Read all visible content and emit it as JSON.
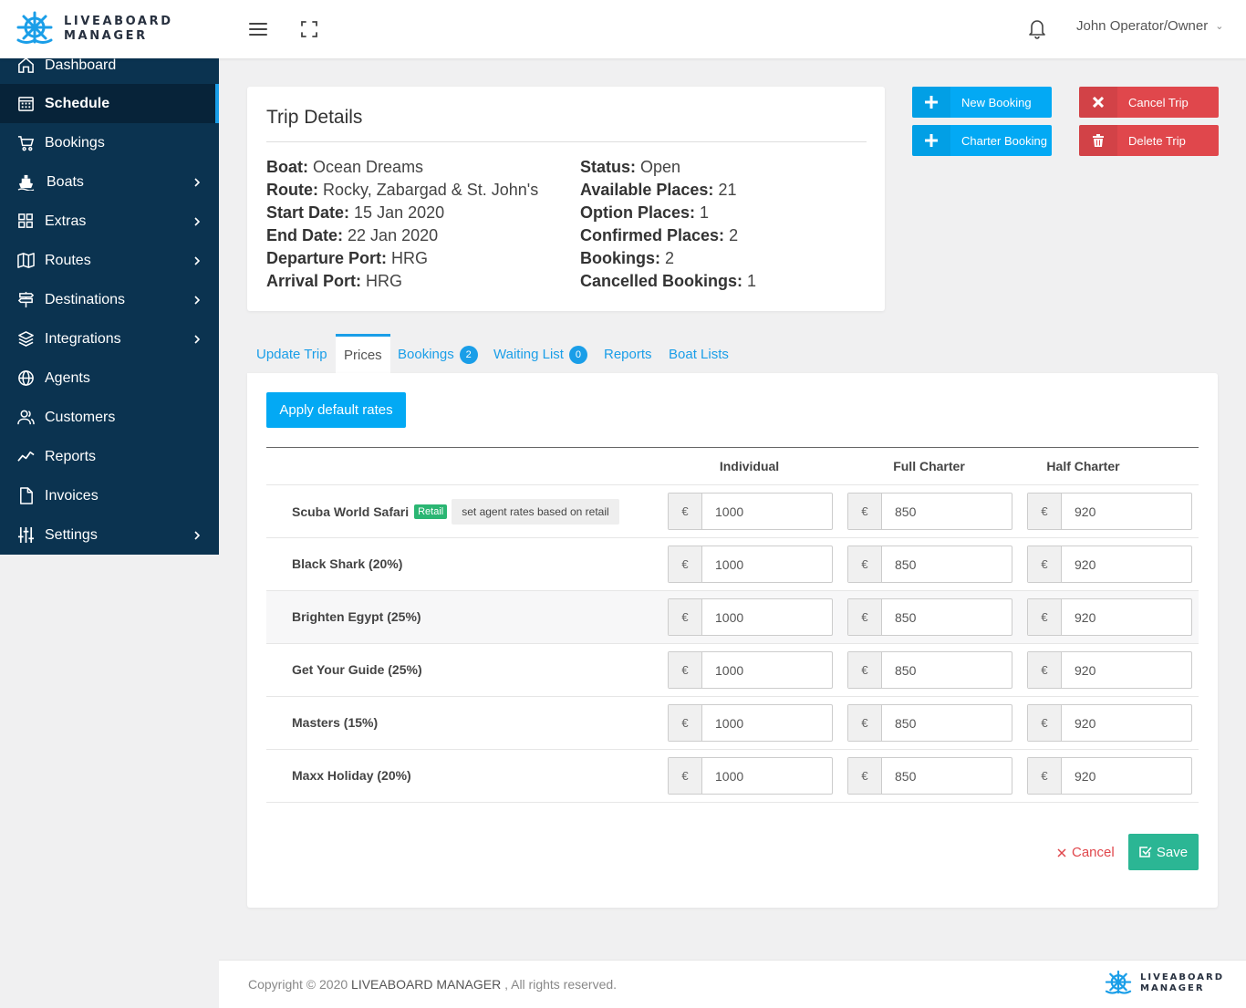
{
  "brand": {
    "line1": "LIVEABOARD",
    "line2": "MANAGER",
    "icon": "ship-wheel-icon",
    "color": "#1a9ee8"
  },
  "header": {
    "user": "John Operator/Owner"
  },
  "sidebar": {
    "items": [
      {
        "label": "Dashboard",
        "icon": "home-icon"
      },
      {
        "label": "Schedule",
        "icon": "calendar-icon",
        "active": true
      },
      {
        "label": "Bookings",
        "icon": "cart-icon"
      },
      {
        "label": "Boats",
        "icon": "ship-icon",
        "has_children": true
      },
      {
        "label": "Extras",
        "icon": "grid-icon",
        "has_children": true
      },
      {
        "label": "Routes",
        "icon": "map-icon",
        "has_children": true
      },
      {
        "label": "Destinations",
        "icon": "signpost-icon",
        "has_children": true
      },
      {
        "label": "Integrations",
        "icon": "layers-icon",
        "has_children": true
      },
      {
        "label": "Agents",
        "icon": "globe-icon"
      },
      {
        "label": "Customers",
        "icon": "users-icon"
      },
      {
        "label": "Reports",
        "icon": "trend-icon"
      },
      {
        "label": "Invoices",
        "icon": "file-icon"
      },
      {
        "label": "Settings",
        "icon": "sliders-icon",
        "has_children": true
      }
    ]
  },
  "trip": {
    "title": "Trip Details",
    "left": [
      {
        "label": "Boat:",
        "value": "Ocean Dreams"
      },
      {
        "label": "Route:",
        "value": "Rocky, Zabargad & St. John's"
      },
      {
        "label": "Start Date:",
        "value": "15 Jan 2020"
      },
      {
        "label": "End Date:",
        "value": "22 Jan 2020"
      },
      {
        "label": "Departure Port:",
        "value": "HRG"
      },
      {
        "label": "Arrival Port:",
        "value": "HRG"
      }
    ],
    "right": [
      {
        "label": "Status:",
        "value": "Open"
      },
      {
        "label": "Available Places:",
        "value": "21"
      },
      {
        "label": "Option Places:",
        "value": "1"
      },
      {
        "label": "Confirmed Places:",
        "value": "2"
      },
      {
        "label": "Bookings:",
        "value": "2"
      },
      {
        "label": "Cancelled Bookings:",
        "value": "1"
      }
    ]
  },
  "actions": {
    "new_booking": "New Booking",
    "charter_booking": "Charter Booking",
    "cancel_trip": "Cancel Trip",
    "delete_trip": "Delete Trip"
  },
  "tabs": [
    {
      "label": "Update Trip"
    },
    {
      "label": "Prices",
      "active": true
    },
    {
      "label": "Bookings",
      "badge": "2"
    },
    {
      "label": "Waiting List",
      "badge": "0"
    },
    {
      "label": "Reports"
    },
    {
      "label": "Boat Lists"
    }
  ],
  "prices": {
    "apply_label": "Apply default rates",
    "columns": [
      "Individual",
      "Full Charter",
      "Half Charter"
    ],
    "currency": "€",
    "retail_badge": "Retail",
    "agent_rate_label": "set agent rates based on retail",
    "rows": [
      {
        "name": "Scuba World Safari",
        "retail": true,
        "values": [
          "1000",
          "850",
          "920"
        ]
      },
      {
        "name": "Black Shark (20%)",
        "values": [
          "1000",
          "850",
          "920"
        ]
      },
      {
        "name": "Brighten Egypt (25%)",
        "values": [
          "1000",
          "850",
          "920"
        ]
      },
      {
        "name": "Get Your Guide (25%)",
        "values": [
          "1000",
          "850",
          "920"
        ]
      },
      {
        "name": "Masters (15%)",
        "values": [
          "1000",
          "850",
          "920"
        ]
      },
      {
        "name": "Maxx Holiday (20%)",
        "values": [
          "1000",
          "850",
          "920"
        ]
      }
    ],
    "cancel_label": "Cancel",
    "save_label": "Save"
  },
  "footer": {
    "copyright_prefix": "Copyright © 2020",
    "brand": "LIVEABOARD MANAGER",
    "suffix": ", All rights reserved."
  }
}
